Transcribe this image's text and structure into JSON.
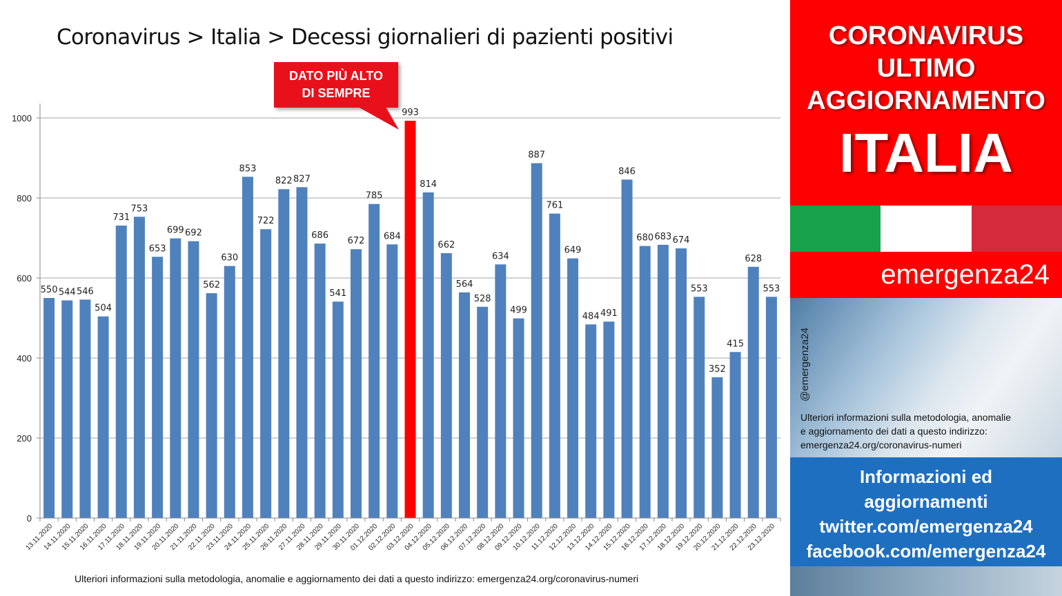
{
  "chart_data": {
    "type": "bar",
    "title": "Coronavirus > Italia > Decessi giornalieri di pazienti positivi",
    "categories": [
      "13.11.2020",
      "14.11.2020",
      "15.11.2020",
      "16.11.2020",
      "17.11.2020",
      "18.11.2020",
      "19.11.2020",
      "20.11.2020",
      "21.11.2020",
      "22.11.2020",
      "23.11.2020",
      "24.11.2020",
      "25.11.2020",
      "26.11.2020",
      "27.11.2020",
      "28.11.2020",
      "29.11.2020",
      "30.11.2020",
      "01.12.2020",
      "02.12.2020",
      "03.12.2020",
      "04.12.2020",
      "05.12.2020",
      "06.12.2020",
      "07.12.2020",
      "08.12.2020",
      "09.12.2020",
      "10.12.2020",
      "11.12.2020",
      "12.12.2020",
      "13.12.2020",
      "14.12.2020",
      "15.12.2020",
      "16.12.2020",
      "17.12.2020",
      "18.12.2020",
      "19.12.2020",
      "20.12.2020",
      "21.12.2020",
      "22.12.2020",
      "23.12.2020"
    ],
    "values": [
      550,
      544,
      546,
      504,
      731,
      753,
      653,
      699,
      692,
      562,
      630,
      853,
      722,
      822,
      827,
      686,
      541,
      672,
      785,
      684,
      993,
      814,
      662,
      564,
      528,
      634,
      499,
      887,
      761,
      649,
      484,
      491,
      846,
      680,
      683,
      674,
      553,
      352,
      415,
      628,
      553
    ],
    "highlight_index": 20,
    "bar_color": "#4f81bd",
    "highlight_color": "#ff0000",
    "ylim": [
      0,
      1000
    ],
    "yticks": [
      0,
      200,
      400,
      600,
      800,
      1000
    ],
    "grid": true,
    "xlabel": "",
    "ylabel": "",
    "annotation": {
      "line1": "DATO PIÙ ALTO",
      "line2": "DI SEMPRE"
    },
    "footnote": "Ulteriori informazioni sulla metodologia, anomalie e aggiornamento dei dati a questo indirizzo: emergenza24.org/coronavirus-numeri"
  },
  "side_panel": {
    "header_line1": "CORONAVIRUS",
    "header_line2": "ULTIMO",
    "header_line3": "AGGIORNAMENTO",
    "header_line4": "ITALIA",
    "brand": "emergenza24",
    "handle": "@emergenza24",
    "note_line1": "Ulteriori informazioni sulla metodologia, anomalie",
    "note_line2": "e aggiornamento dei dati a questo indirizzo:",
    "note_line3": "emergenza24.org/coronavirus-numeri",
    "info_line1": "Informazioni ed",
    "info_line2": "aggiornamenti",
    "info_line3": "twitter.com/emergenza24",
    "info_line4": "facebook.com/emergenza24",
    "colors": {
      "red": "#ff0000",
      "blue": "#1f6fc1",
      "flag_green": "#16a24a",
      "flag_white": "#ffffff",
      "flag_red": "#d42a3c"
    }
  }
}
